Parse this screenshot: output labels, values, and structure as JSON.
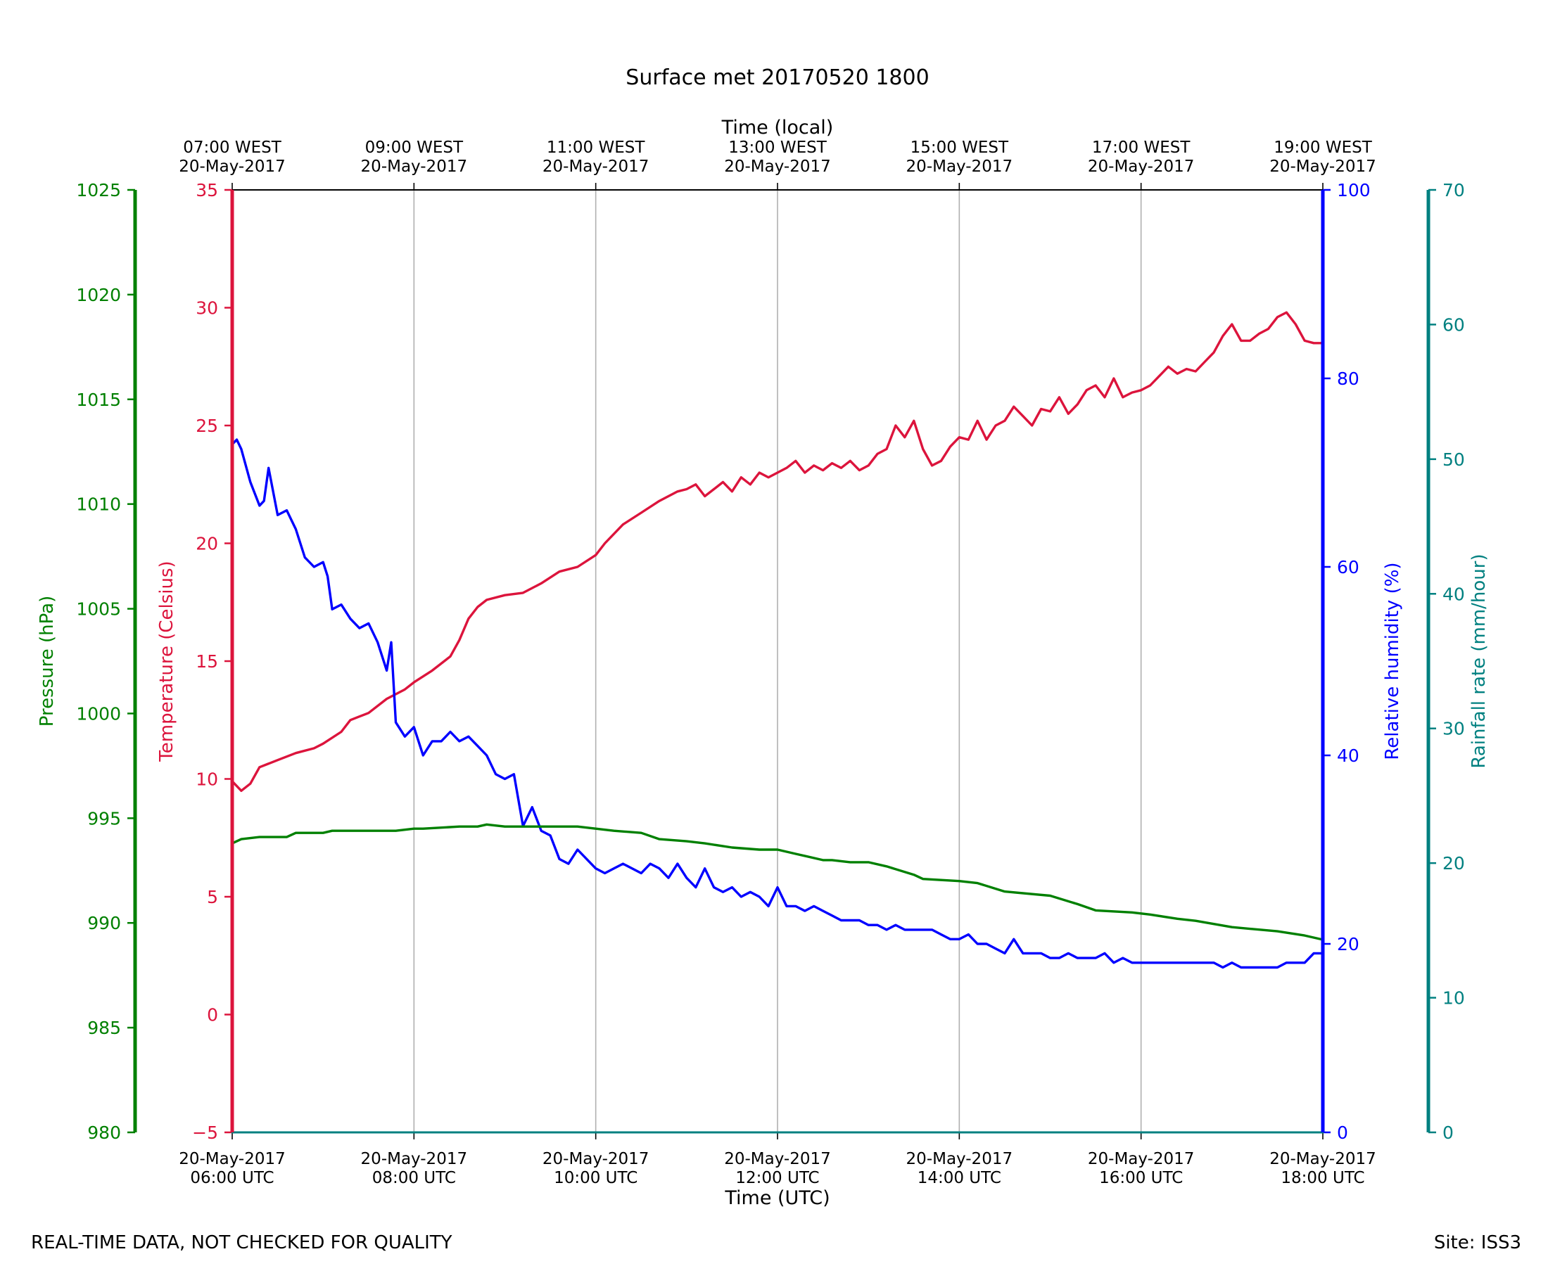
{
  "chart_data": {
    "type": "line",
    "title": "Surface met 20170520 1800",
    "xlabel": "Time (UTC)",
    "x2label": "Time (local)",
    "footer_left": "REAL-TIME DATA, NOT CHECKED FOR QUALITY",
    "footer_right": "Site: ISS3",
    "x_range_hours_utc": [
      6,
      18
    ],
    "grid": "vertical at major x ticks",
    "x_ticks": [
      {
        "hour": 6,
        "utc_date": "20-May-2017",
        "utc_time": "06:00 UTC",
        "local_time": "07:00 WEST",
        "local_date": "20-May-2017"
      },
      {
        "hour": 8,
        "utc_date": "20-May-2017",
        "utc_time": "08:00 UTC",
        "local_time": "09:00 WEST",
        "local_date": "20-May-2017"
      },
      {
        "hour": 10,
        "utc_date": "20-May-2017",
        "utc_time": "10:00 UTC",
        "local_time": "11:00 WEST",
        "local_date": "20-May-2017"
      },
      {
        "hour": 12,
        "utc_date": "20-May-2017",
        "utc_time": "12:00 UTC",
        "local_time": "13:00 WEST",
        "local_date": "20-May-2017"
      },
      {
        "hour": 14,
        "utc_date": "20-May-2017",
        "utc_time": "14:00 UTC",
        "local_time": "15:00 WEST",
        "local_date": "20-May-2017"
      },
      {
        "hour": 16,
        "utc_date": "20-May-2017",
        "utc_time": "16:00 UTC",
        "local_time": "17:00 WEST",
        "local_date": "20-May-2017"
      },
      {
        "hour": 18,
        "utc_date": "20-May-2017",
        "utc_time": "18:00 UTC",
        "local_time": "19:00 WEST",
        "local_date": "20-May-2017"
      }
    ],
    "axes": {
      "pressure": {
        "label": "Pressure (hPa)",
        "color": "#008000",
        "ylim": [
          980,
          1025
        ],
        "ticks": [
          "980",
          "985",
          "990",
          "995",
          "1000",
          "1005",
          "1010",
          "1015",
          "1020",
          "1025"
        ]
      },
      "temperature": {
        "label": "Temperature (Celsius)",
        "color": "#dc143c",
        "ylim": [
          -5,
          35
        ],
        "ticks": [
          "−5",
          "0",
          "5",
          "10",
          "15",
          "20",
          "25",
          "30",
          "35"
        ]
      },
      "humidity": {
        "label": "Relative humidity (%)",
        "color": "#0000ff",
        "ylim": [
          0,
          100
        ],
        "ticks": [
          "0",
          "20",
          "40",
          "60",
          "80",
          "100"
        ]
      },
      "rainfall": {
        "label": "Rainfall rate (mm/hour)",
        "color": "#008080",
        "ylim": [
          0,
          70
        ],
        "ticks": [
          "0",
          "10",
          "20",
          "30",
          "40",
          "50",
          "60",
          "70"
        ]
      }
    },
    "series": [
      {
        "name": "Temperature",
        "axis": "temperature",
        "color": "#dc143c",
        "points": [
          [
            6.0,
            9.9
          ],
          [
            6.1,
            9.5
          ],
          [
            6.2,
            9.8
          ],
          [
            6.3,
            10.5
          ],
          [
            6.5,
            10.8
          ],
          [
            6.7,
            11.1
          ],
          [
            6.9,
            11.3
          ],
          [
            7.0,
            11.5
          ],
          [
            7.2,
            12
          ],
          [
            7.3,
            12.5
          ],
          [
            7.5,
            12.8
          ],
          [
            7.7,
            13.4
          ],
          [
            7.9,
            13.8
          ],
          [
            8.0,
            14.1
          ],
          [
            8.2,
            14.6
          ],
          [
            8.4,
            15.2
          ],
          [
            8.5,
            15.9
          ],
          [
            8.6,
            16.8
          ],
          [
            8.7,
            17.3
          ],
          [
            8.8,
            17.6
          ],
          [
            9.0,
            17.8
          ],
          [
            9.2,
            17.9
          ],
          [
            9.4,
            18.3
          ],
          [
            9.6,
            18.8
          ],
          [
            9.8,
            19.0
          ],
          [
            10.0,
            19.5
          ],
          [
            10.1,
            20.0
          ],
          [
            10.3,
            20.8
          ],
          [
            10.5,
            21.3
          ],
          [
            10.7,
            21.8
          ],
          [
            10.9,
            22.2
          ],
          [
            11.0,
            22.3
          ],
          [
            11.1,
            22.5
          ],
          [
            11.2,
            22.0
          ],
          [
            11.3,
            22.3
          ],
          [
            11.4,
            22.6
          ],
          [
            11.5,
            22.2
          ],
          [
            11.6,
            22.8
          ],
          [
            11.7,
            22.5
          ],
          [
            11.8,
            23.0
          ],
          [
            11.9,
            22.8
          ],
          [
            12.0,
            23.0
          ],
          [
            12.1,
            23.2
          ],
          [
            12.2,
            23.5
          ],
          [
            12.3,
            23.0
          ],
          [
            12.4,
            23.3
          ],
          [
            12.5,
            23.1
          ],
          [
            12.6,
            23.4
          ],
          [
            12.7,
            23.2
          ],
          [
            12.8,
            23.5
          ],
          [
            12.9,
            23.1
          ],
          [
            13.0,
            23.3
          ],
          [
            13.1,
            23.8
          ],
          [
            13.2,
            24.0
          ],
          [
            13.3,
            25.0
          ],
          [
            13.4,
            24.5
          ],
          [
            13.5,
            25.2
          ],
          [
            13.6,
            24.0
          ],
          [
            13.7,
            23.3
          ],
          [
            13.8,
            23.5
          ],
          [
            13.9,
            24.1
          ],
          [
            14.0,
            24.5
          ],
          [
            14.1,
            24.4
          ],
          [
            14.2,
            25.2
          ],
          [
            14.3,
            24.4
          ],
          [
            14.4,
            25.0
          ],
          [
            14.5,
            25.2
          ],
          [
            14.6,
            25.8
          ],
          [
            14.7,
            25.4
          ],
          [
            14.8,
            25.0
          ],
          [
            14.9,
            25.7
          ],
          [
            15.0,
            25.6
          ],
          [
            15.1,
            26.2
          ],
          [
            15.2,
            25.5
          ],
          [
            15.3,
            25.9
          ],
          [
            15.4,
            26.5
          ],
          [
            15.5,
            26.7
          ],
          [
            15.6,
            26.2
          ],
          [
            15.7,
            27.0
          ],
          [
            15.8,
            26.2
          ],
          [
            15.9,
            26.4
          ],
          [
            16.0,
            26.5
          ],
          [
            16.1,
            26.7
          ],
          [
            16.2,
            27.1
          ],
          [
            16.3,
            27.5
          ],
          [
            16.4,
            27.2
          ],
          [
            16.5,
            27.4
          ],
          [
            16.6,
            27.3
          ],
          [
            16.7,
            27.7
          ],
          [
            16.8,
            28.1
          ],
          [
            16.9,
            28.8
          ],
          [
            17.0,
            29.3
          ],
          [
            17.1,
            28.6
          ],
          [
            17.2,
            28.6
          ],
          [
            17.3,
            28.9
          ],
          [
            17.4,
            29.1
          ],
          [
            17.5,
            29.6
          ],
          [
            17.6,
            29.8
          ],
          [
            17.7,
            29.3
          ],
          [
            17.8,
            28.6
          ],
          [
            17.9,
            28.5
          ],
          [
            18.0,
            28.5
          ]
        ]
      },
      {
        "name": "Relative humidity",
        "axis": "humidity",
        "color": "#0000ff",
        "points": [
          [
            6.0,
            73
          ],
          [
            6.05,
            73.5
          ],
          [
            6.1,
            72.5
          ],
          [
            6.2,
            69
          ],
          [
            6.3,
            66.5
          ],
          [
            6.35,
            67
          ],
          [
            6.4,
            70.5
          ],
          [
            6.5,
            65.5
          ],
          [
            6.6,
            66
          ],
          [
            6.7,
            64
          ],
          [
            6.8,
            61
          ],
          [
            6.9,
            60
          ],
          [
            7.0,
            60.5
          ],
          [
            7.05,
            59
          ],
          [
            7.1,
            55.5
          ],
          [
            7.2,
            56
          ],
          [
            7.3,
            54.5
          ],
          [
            7.4,
            53.5
          ],
          [
            7.5,
            54
          ],
          [
            7.6,
            52
          ],
          [
            7.7,
            49
          ],
          [
            7.75,
            52
          ],
          [
            7.8,
            43.5
          ],
          [
            7.9,
            42
          ],
          [
            8.0,
            43
          ],
          [
            8.1,
            40
          ],
          [
            8.2,
            41.5
          ],
          [
            8.3,
            41.5
          ],
          [
            8.4,
            42.5
          ],
          [
            8.5,
            41.5
          ],
          [
            8.6,
            42
          ],
          [
            8.7,
            41
          ],
          [
            8.8,
            40
          ],
          [
            8.9,
            38
          ],
          [
            9.0,
            37.5
          ],
          [
            9.1,
            38
          ],
          [
            9.2,
            32.5
          ],
          [
            9.3,
            34.5
          ],
          [
            9.4,
            32
          ],
          [
            9.5,
            31.5
          ],
          [
            9.6,
            29
          ],
          [
            9.7,
            28.5
          ],
          [
            9.8,
            30
          ],
          [
            9.9,
            29
          ],
          [
            10.0,
            28
          ],
          [
            10.1,
            27.5
          ],
          [
            10.2,
            28
          ],
          [
            10.3,
            28.5
          ],
          [
            10.4,
            28
          ],
          [
            10.5,
            27.5
          ],
          [
            10.6,
            28.5
          ],
          [
            10.7,
            28
          ],
          [
            10.8,
            27
          ],
          [
            10.9,
            28.5
          ],
          [
            11.0,
            27
          ],
          [
            11.1,
            26
          ],
          [
            11.2,
            28
          ],
          [
            11.3,
            26
          ],
          [
            11.4,
            25.5
          ],
          [
            11.5,
            26
          ],
          [
            11.6,
            25
          ],
          [
            11.7,
            25.5
          ],
          [
            11.8,
            25
          ],
          [
            11.9,
            24
          ],
          [
            12.0,
            26
          ],
          [
            12.1,
            24
          ],
          [
            12.2,
            24
          ],
          [
            12.3,
            23.5
          ],
          [
            12.4,
            24
          ],
          [
            12.5,
            23.5
          ],
          [
            12.6,
            23
          ],
          [
            12.7,
            22.5
          ],
          [
            12.8,
            22.5
          ],
          [
            12.9,
            22.5
          ],
          [
            13.0,
            22
          ],
          [
            13.1,
            22
          ],
          [
            13.2,
            21.5
          ],
          [
            13.3,
            22
          ],
          [
            13.4,
            21.5
          ],
          [
            13.5,
            21.5
          ],
          [
            13.6,
            21.5
          ],
          [
            13.7,
            21.5
          ],
          [
            13.8,
            21
          ],
          [
            13.9,
            20.5
          ],
          [
            14.0,
            20.5
          ],
          [
            14.1,
            21
          ],
          [
            14.2,
            20
          ],
          [
            14.3,
            20
          ],
          [
            14.4,
            19.5
          ],
          [
            14.5,
            19
          ],
          [
            14.6,
            20.5
          ],
          [
            14.7,
            19
          ],
          [
            14.8,
            19
          ],
          [
            14.9,
            19
          ],
          [
            15.0,
            18.5
          ],
          [
            15.1,
            18.5
          ],
          [
            15.2,
            19
          ],
          [
            15.3,
            18.5
          ],
          [
            15.4,
            18.5
          ],
          [
            15.5,
            18.5
          ],
          [
            15.6,
            19
          ],
          [
            15.7,
            18
          ],
          [
            15.8,
            18.5
          ],
          [
            15.9,
            18
          ],
          [
            16.0,
            18
          ],
          [
            16.1,
            18
          ],
          [
            16.2,
            18
          ],
          [
            16.3,
            18
          ],
          [
            16.4,
            18
          ],
          [
            16.5,
            18
          ],
          [
            16.6,
            18
          ],
          [
            16.7,
            18
          ],
          [
            16.8,
            18
          ],
          [
            16.9,
            17.5
          ],
          [
            17.0,
            18
          ],
          [
            17.1,
            17.5
          ],
          [
            17.2,
            17.5
          ],
          [
            17.3,
            17.5
          ],
          [
            17.4,
            17.5
          ],
          [
            17.5,
            17.5
          ],
          [
            17.6,
            18
          ],
          [
            17.7,
            18
          ],
          [
            17.8,
            18
          ],
          [
            17.9,
            19
          ],
          [
            18.0,
            19
          ]
        ]
      },
      {
        "name": "Pressure",
        "axis": "pressure",
        "color": "#008000",
        "points": [
          [
            6.0,
            993.8
          ],
          [
            6.1,
            994.0
          ],
          [
            6.3,
            994.1
          ],
          [
            6.6,
            994.1
          ],
          [
            6.7,
            994.3
          ],
          [
            7.0,
            994.3
          ],
          [
            7.1,
            994.4
          ],
          [
            7.5,
            994.4
          ],
          [
            7.8,
            994.4
          ],
          [
            8.0,
            994.5
          ],
          [
            8.1,
            994.5
          ],
          [
            8.5,
            994.6
          ],
          [
            8.7,
            994.6
          ],
          [
            8.8,
            994.7
          ],
          [
            9.0,
            994.6
          ],
          [
            9.5,
            994.6
          ],
          [
            9.8,
            994.6
          ],
          [
            10.0,
            994.5
          ],
          [
            10.2,
            994.4
          ],
          [
            10.5,
            994.3
          ],
          [
            10.7,
            994.0
          ],
          [
            11.0,
            993.9
          ],
          [
            11.2,
            993.8
          ],
          [
            11.5,
            993.6
          ],
          [
            11.8,
            993.5
          ],
          [
            12.0,
            993.5
          ],
          [
            12.2,
            993.3
          ],
          [
            12.5,
            993.0
          ],
          [
            12.6,
            993.0
          ],
          [
            12.8,
            992.9
          ],
          [
            13.0,
            992.9
          ],
          [
            13.2,
            992.7
          ],
          [
            13.5,
            992.3
          ],
          [
            13.6,
            992.1
          ],
          [
            14.0,
            992.0
          ],
          [
            14.2,
            991.9
          ],
          [
            14.5,
            991.5
          ],
          [
            15.0,
            991.3
          ],
          [
            15.3,
            990.9
          ],
          [
            15.5,
            990.6
          ],
          [
            15.9,
            990.5
          ],
          [
            16.1,
            990.4
          ],
          [
            16.4,
            990.2
          ],
          [
            16.6,
            990.1
          ],
          [
            17.0,
            989.8
          ],
          [
            17.5,
            989.6
          ],
          [
            17.8,
            989.4
          ],
          [
            18.0,
            989.2
          ]
        ]
      },
      {
        "name": "Rainfall rate",
        "axis": "rainfall",
        "color": "#008080",
        "points": [
          [
            6.0,
            0
          ],
          [
            18.0,
            0
          ]
        ]
      }
    ]
  }
}
